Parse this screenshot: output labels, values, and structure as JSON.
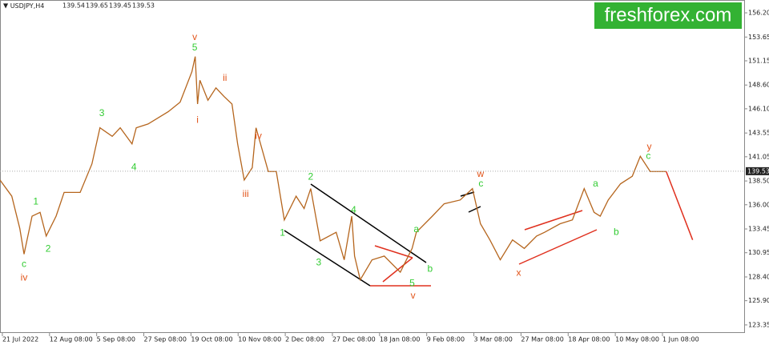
{
  "chart_data": {
    "type": "line",
    "symbol": "USDJPY,H4",
    "ohlc": [
      139.54,
      139.65,
      139.45,
      139.53
    ],
    "watermark": "freshforex.com",
    "x": [
      0,
      2.5,
      4.2,
      5.1,
      6.8,
      8.5,
      9.8,
      11.9,
      13.6,
      17,
      19.5,
      21.2,
      23.8,
      25.5,
      28,
      28.9,
      31.4,
      35.7,
      38.2,
      40.7,
      41.4,
      41.9,
      42.4,
      44.1,
      45.8,
      47.5,
      49.2,
      50.4,
      51.8,
      53.5,
      54.3,
      56.9,
      58.6,
      60.3,
      62.8,
      64.5,
      65.9,
      67.9,
      71.3,
      73,
      74.6,
      75.2,
      76.4,
      78.9,
      81.5,
      84.9,
      87.4,
      88.3,
      91.7,
      94.2,
      97.6,
      100.2,
      101.9,
      103.9,
      106.1,
      108.7,
      111.2,
      113.8,
      115.5,
      118.8,
      121.4,
      123.9,
      126,
      127.3,
      129,
      131.6,
      134.1,
      135.8,
      137.9,
      140.1,
      141.3
    ],
    "series": [
      {
        "color": "#b5651d",
        "values": [
          138.6,
          136.9,
          133.5,
          130.8,
          134.8,
          135.2,
          132.7,
          134.8,
          137.3,
          137.3,
          140.3,
          144.1,
          143.2,
          144.1,
          142.4,
          144.1,
          144.5,
          145.8,
          146.8,
          150,
          151.6,
          146.6,
          149.1,
          147,
          148.3,
          147.4,
          146.6,
          142.4,
          138.6,
          139.9,
          144.1,
          139.5,
          139.5,
          134.4,
          136.9,
          135.6,
          137.7,
          132.2,
          133.1,
          130.2,
          134.8,
          130.6,
          128.1,
          130.2,
          130.6,
          128.9,
          131.4,
          133.1,
          134.8,
          136.1,
          136.5,
          137.7,
          134,
          132.3,
          130.2,
          132.3,
          131.4,
          132.7,
          133.1,
          134,
          134.4,
          137.7,
          135.2,
          134.8,
          136.5,
          138.2,
          139,
          141.1,
          139.5,
          139.5,
          139.5
        ]
      }
    ],
    "forecast": {
      "color": "#e0301e",
      "x": [
        141.3,
        146.9
      ],
      "values": [
        139.5,
        132.3
      ]
    },
    "annotations": [
      {
        "text": "c",
        "x": 5.1,
        "y": 129.7,
        "color": "#33cc33"
      },
      {
        "text": "iv",
        "x": 5.1,
        "y": 128.3,
        "color": "#e2541a"
      },
      {
        "text": "1",
        "x": 7.6,
        "y": 136.3,
        "color": "#33cc33"
      },
      {
        "text": "2",
        "x": 10.2,
        "y": 131.3,
        "color": "#33cc33"
      },
      {
        "text": "3",
        "x": 21.6,
        "y": 145.6,
        "color": "#33cc33"
      },
      {
        "text": "4",
        "x": 28.4,
        "y": 139.9,
        "color": "#33cc33"
      },
      {
        "text": "v",
        "x": 41.3,
        "y": 153.6,
        "color": "#e2541a"
      },
      {
        "text": "5",
        "x": 41.3,
        "y": 152.5,
        "color": "#33cc33"
      },
      {
        "text": "ii",
        "x": 47.7,
        "y": 149.3,
        "color": "#e2541a"
      },
      {
        "text": "i",
        "x": 41.9,
        "y": 144.9,
        "color": "#e2541a"
      },
      {
        "text": "iv",
        "x": 54.8,
        "y": 143.2,
        "color": "#e2541a"
      },
      {
        "text": "iii",
        "x": 52.1,
        "y": 137.1,
        "color": "#e2541a"
      },
      {
        "text": "1",
        "x": 59.9,
        "y": 133,
        "color": "#33cc33"
      },
      {
        "text": "2",
        "x": 65.9,
        "y": 138.9,
        "color": "#33cc33"
      },
      {
        "text": "3",
        "x": 67.6,
        "y": 129.9,
        "color": "#33cc33"
      },
      {
        "text": "4",
        "x": 75,
        "y": 135.4,
        "color": "#33cc33"
      },
      {
        "text": "5",
        "x": 87.4,
        "y": 127.7,
        "color": "#33cc33"
      },
      {
        "text": "v",
        "x": 87.6,
        "y": 126.4,
        "color": "#e2541a"
      },
      {
        "text": "a",
        "x": 88.3,
        "y": 133.4,
        "color": "#33cc33"
      },
      {
        "text": "b",
        "x": 91.2,
        "y": 129.2,
        "color": "#33cc33"
      },
      {
        "text": "w",
        "x": 101.9,
        "y": 139.2,
        "color": "#e2541a"
      },
      {
        "text": "c",
        "x": 102,
        "y": 138.2,
        "color": "#33cc33"
      },
      {
        "text": "x",
        "x": 110,
        "y": 128.8,
        "color": "#e2541a"
      },
      {
        "text": "a",
        "x": 126.3,
        "y": 138.2,
        "color": "#33cc33"
      },
      {
        "text": "b",
        "x": 130.7,
        "y": 133.1,
        "color": "#33cc33"
      },
      {
        "text": "y",
        "x": 137.7,
        "y": 142.05,
        "color": "#e2541a"
      },
      {
        "text": "c",
        "x": 137.5,
        "y": 141.1,
        "color": "#33cc33"
      }
    ],
    "xlim": [
      0,
      158
    ],
    "xticks": [
      {
        "value": 0.5,
        "label": "21 Jul 2022"
      },
      {
        "value": 10.5,
        "label": "12 Aug 08:00"
      },
      {
        "value": 20.5,
        "label": "5 Sep 08:00"
      },
      {
        "value": 30.5,
        "label": "27 Sep 08:00"
      },
      {
        "value": 40.5,
        "label": "19 Oct 08:00"
      },
      {
        "value": 50.5,
        "label": "10 Nov 08:00"
      },
      {
        "value": 60.5,
        "label": "2 Dec 08:00"
      },
      {
        "value": 70.5,
        "label": "27 Dec 08:00"
      },
      {
        "value": 80.5,
        "label": "18 Jan 08:00"
      },
      {
        "value": 90.5,
        "label": "9 Feb 08:00"
      },
      {
        "value": 100.5,
        "label": "3 Mar 08:00"
      },
      {
        "value": 110.5,
        "label": "27 Mar 08:00"
      },
      {
        "value": 120.5,
        "label": "18 Apr 08:00"
      },
      {
        "value": 130.5,
        "label": "10 May 08:00"
      },
      {
        "value": 140.5,
        "label": "1 Jun 08:00"
      }
    ],
    "ylim": [
      122.5,
      157.55
    ],
    "yticks": [
      123.35,
      {
        "value": 125.9,
        "label": "125.90"
      },
      {
        "value": 128.4,
        "label": "128.40"
      },
      130.95,
      133.45,
      {
        "value": 136,
        "label": "136.00"
      },
      {
        "value": 138.5,
        "label": "138.50"
      },
      141.05,
      143.55,
      {
        "value": 146.1,
        "label": "146.10"
      },
      {
        "value": 148.6,
        "label": "148.60"
      },
      151.15,
      153.65,
      {
        "value": 156.2,
        "label": "156.20"
      }
    ]
  }
}
